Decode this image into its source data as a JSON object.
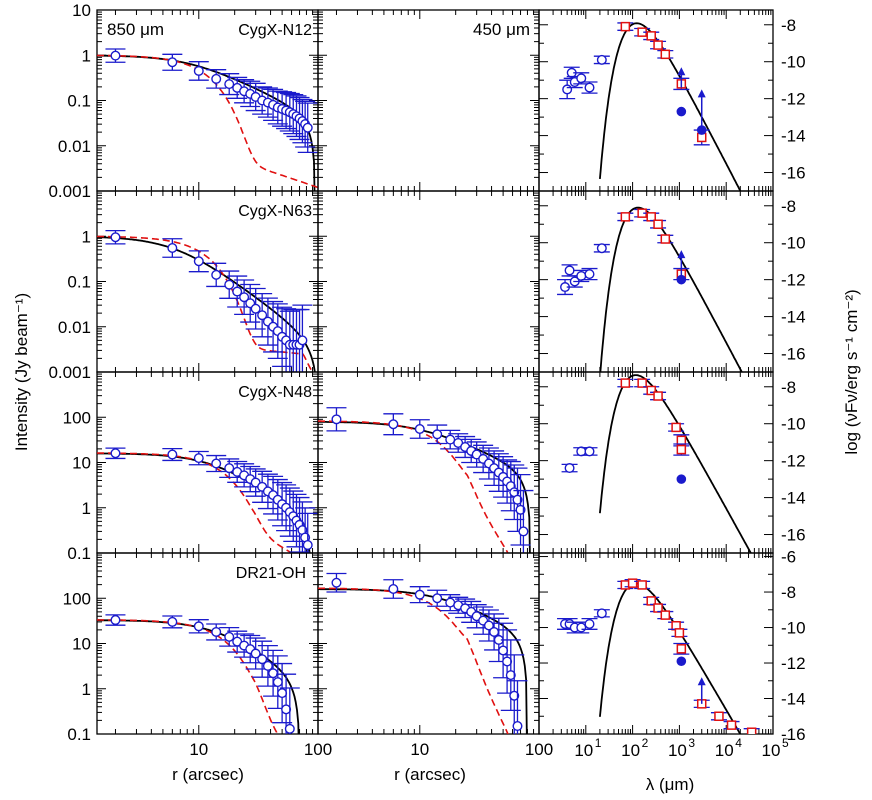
{
  "figure": {
    "ylabel_left": "Intensity (Jy beam⁻¹)",
    "ylabel_right": "log (νFν/erg s⁻¹ cm⁻²)",
    "xlabel_profile_left": "r (arcsec)",
    "xlabel_profile_mid": "r (arcsec)",
    "xlabel_sed": "λ (μm)",
    "label_850": "850 μm",
    "label_450": "450 μm"
  },
  "colors": {
    "model": "#000000",
    "data": "#1a1acc",
    "herschel": "#e01010",
    "dashed": "#e01010"
  },
  "chart_data": [
    {
      "type": "scatter",
      "source": "CygX-N12",
      "band": "850 um",
      "xscale": "log",
      "yscale": "log",
      "xlim": [
        1.4,
        100
      ],
      "ylim": [
        0.001,
        10
      ],
      "r": [
        2,
        6,
        10,
        14,
        18,
        21,
        24,
        27,
        30,
        34,
        38,
        42,
        46,
        50,
        54,
        58,
        62,
        66,
        70,
        74,
        78,
        82
      ],
      "intensity": [
        0.98,
        0.7,
        0.45,
        0.3,
        0.23,
        0.19,
        0.16,
        0.14,
        0.12,
        0.1,
        0.09,
        0.08,
        0.07,
        0.065,
        0.06,
        0.055,
        0.05,
        0.045,
        0.04,
        0.035,
        0.03,
        0.025
      ],
      "error_factor": [
        1.4,
        1.5,
        1.6,
        1.6,
        1.7,
        1.7,
        1.8,
        1.9,
        2,
        2,
        2.1,
        2.2,
        2.3,
        2.4,
        2.5,
        2.6,
        2.7,
        2.8,
        2.9,
        3,
        3.2,
        3.5
      ],
      "model_profile": {
        "peak": 1.0,
        "core": 8.5,
        "index": 1.3,
        "outer": 95
      },
      "beam_profile": {
        "peak": 1.0,
        "width": 9.5,
        "floor": 0.005,
        "floor_start": 20,
        "floor_end": 100,
        "floor_end_value": 0.0012
      }
    },
    {
      "type": "scatter",
      "source": "CygX-N12",
      "band": "450 um",
      "xscale": "log",
      "yscale": "log",
      "xlim": [
        1.4,
        100
      ],
      "ylim": [
        0.001,
        10
      ],
      "r": [],
      "intensity": [],
      "error_factor": []
    },
    {
      "type": "scatter",
      "source": "CygX-N12",
      "band": "SED",
      "xscale": "log",
      "xlim": [
        1,
        100000
      ],
      "ylim": [
        -17,
        -7.2
      ],
      "yticks": [
        -8,
        -10,
        -12,
        -14,
        -16
      ],
      "lambda": [
        4,
        5,
        5.8,
        8,
        12,
        22,
        70,
        160,
        250,
        350,
        500,
        1100,
        3000
      ],
      "logF": [
        -11.5,
        -10.6,
        -11.1,
        -10.9,
        -11.4,
        -9.9,
        -8.1,
        -8.4,
        -8.6,
        -9.1,
        -9.6,
        -11.2,
        -14.1
      ],
      "logF_err": [
        0.5,
        0.3,
        0.3,
        0.3,
        0.3,
        0.2,
        0.2,
        0.2,
        0.2,
        0.2,
        0.2,
        0.3,
        0.4
      ],
      "herschel_index": [
        6,
        7,
        8,
        9,
        10,
        11,
        12
      ],
      "solid": [
        {
          "lambda": 1100,
          "logF": -12.7
        },
        {
          "lambda": 3000,
          "logF": -13.7
        }
      ],
      "lower_limits": [
        {
          "lambda": 1100,
          "logF": -11.4,
          "arrow_to": -10.3
        },
        {
          "lambda": 3000,
          "logF": -13.6,
          "arrow_to": -11.5
        }
      ],
      "greybody": {
        "peak_lambda": 90,
        "peak_logF": -8.05,
        "start_lambda": 20,
        "t": 20,
        "beta": 1.9
      }
    },
    {
      "type": "scatter",
      "source": "CygX-N63",
      "band": "850 um",
      "xscale": "log",
      "yscale": "log",
      "xlim": [
        1.4,
        100
      ],
      "ylim": [
        0.001,
        10
      ],
      "r": [
        2,
        6,
        10,
        14,
        18,
        21,
        24,
        27,
        30,
        34,
        38,
        42,
        46,
        50,
        54,
        58,
        62,
        66,
        70,
        74
      ],
      "intensity": [
        0.95,
        0.55,
        0.28,
        0.14,
        0.085,
        0.06,
        0.045,
        0.033,
        0.025,
        0.018,
        0.013,
        0.01,
        0.008,
        0.006,
        0.005,
        0.004,
        0.004,
        0.004,
        0.004,
        0.005
      ],
      "error_factor": [
        1.4,
        1.6,
        1.7,
        1.8,
        2,
        2.2,
        2.4,
        2.6,
        2.8,
        3,
        3.3,
        3.6,
        4,
        4.5,
        5,
        5.5,
        6,
        6,
        6,
        6
      ],
      "model_profile": {
        "peak": 1.0,
        "core": 6.5,
        "index": 2.0,
        "outer": 100
      },
      "beam_profile": {
        "peak": 1.0,
        "width": 9.5,
        "floor": 0.0035,
        "floor_start": 20,
        "floor_end": 75,
        "floor_end_value": 0.0025
      }
    },
    {
      "type": "scatter",
      "source": "CygX-N63",
      "band": "450 um",
      "xscale": "log",
      "yscale": "log",
      "xlim": [
        1.4,
        100
      ],
      "ylim": [
        0.001,
        10
      ],
      "r": [],
      "intensity": [],
      "error_factor": []
    },
    {
      "type": "scatter",
      "source": "CygX-N63",
      "band": "SED",
      "xscale": "log",
      "xlim": [
        1,
        100000
      ],
      "ylim": [
        -17,
        -7.2
      ],
      "yticks": [
        -8,
        -10,
        -12,
        -14,
        -16
      ],
      "lambda": [
        3.6,
        4.5,
        5.8,
        8,
        12,
        22,
        70,
        160,
        250,
        350,
        500,
        1100
      ],
      "logF": [
        -12.4,
        -11.5,
        -12.1,
        -11.8,
        -11.7,
        -10.3,
        -8.6,
        -8.4,
        -8.6,
        -9.0,
        -9.8,
        -11.7
      ],
      "logF_err": [
        0.4,
        0.3,
        0.3,
        0.3,
        0.3,
        0.2,
        0.2,
        0.2,
        0.2,
        0.2,
        0.2,
        0.3
      ],
      "herschel_index": [
        6,
        7,
        8,
        9,
        10,
        11
      ],
      "solid": [
        {
          "lambda": 1100,
          "logF": -12.0
        }
      ],
      "lower_limits": [
        {
          "lambda": 1100,
          "logF": -11.8,
          "arrow_to": -10.4
        }
      ],
      "greybody": {
        "peak_lambda": 100,
        "peak_logF": -8.2,
        "start_lambda": 20,
        "t": 19,
        "beta": 1.8
      }
    },
    {
      "type": "scatter",
      "source": "CygX-N48",
      "band": "850 um",
      "xscale": "log",
      "yscale": "log",
      "xlim": [
        1.4,
        100
      ],
      "ylim": [
        0.1,
        1000
      ],
      "r": [
        2,
        6,
        10,
        14,
        18,
        21,
        24,
        27,
        30,
        34,
        38,
        42,
        46,
        50,
        54,
        58,
        62,
        66,
        70,
        74,
        78,
        82
      ],
      "intensity": [
        16,
        15,
        12.5,
        9.5,
        7.5,
        6.2,
        5.2,
        4.3,
        3.6,
        2.9,
        2.3,
        1.9,
        1.5,
        1.2,
        1.0,
        0.8,
        0.65,
        0.52,
        0.42,
        0.32,
        0.22,
        0.15
      ],
      "error_factor": [
        1.3,
        1.35,
        1.4,
        1.5,
        1.6,
        1.7,
        1.8,
        1.9,
        2,
        2.2,
        2.4,
        2.6,
        2.8,
        3,
        3.2,
        3.4,
        3.6,
        3.8,
        4,
        4.2,
        4.5,
        5
      ],
      "model_profile": {
        "peak": 16,
        "core": 14,
        "index": 1.9,
        "outer": 90
      },
      "beam_profile": {
        "peak": 16,
        "width": 13,
        "floor": 0.3,
        "floor_start": 30,
        "floor_end": 60,
        "floor_end_value": 0.1
      }
    },
    {
      "type": "scatter",
      "source": "CygX-N48",
      "band": "450 um",
      "xscale": "log",
      "yscale": "log",
      "xlim": [
        1.4,
        100
      ],
      "ylim": [
        0.1,
        1000
      ],
      "r": [
        2,
        6,
        10,
        14,
        18,
        21,
        24,
        27,
        30,
        34,
        38,
        42,
        46,
        50,
        54,
        58,
        62,
        66,
        70,
        74
      ],
      "intensity": [
        90,
        70,
        55,
        42,
        32,
        27,
        22,
        18,
        15,
        12,
        9.5,
        7.5,
        6.0,
        4.8,
        3.8,
        3.0,
        2.2,
        1.5,
        0.9,
        0.3
      ],
      "error_factor": [
        1.8,
        1.7,
        1.6,
        1.6,
        1.6,
        1.6,
        1.7,
        1.8,
        1.9,
        2,
        2.2,
        2.4,
        2.6,
        2.8,
        3,
        3.5,
        4,
        5,
        6,
        8
      ],
      "model_profile": {
        "peak": 80,
        "core": 10,
        "index": 1.2,
        "outer": 85
      },
      "beam_profile": {
        "peak": 80,
        "width": 11,
        "floor": 3,
        "floor_start": 25,
        "floor_end": 55,
        "floor_end_value": 0.1
      }
    },
    {
      "type": "scatter",
      "source": "CygX-N48",
      "band": "SED",
      "xscale": "log",
      "xlim": [
        1,
        100000
      ],
      "ylim": [
        -17,
        -7.2
      ],
      "yticks": [
        -8,
        -10,
        -12,
        -14,
        -16
      ],
      "lambda": [
        4.5,
        8,
        12,
        70,
        160,
        250,
        350,
        850,
        1100,
        1100
      ],
      "logF": [
        -12.4,
        -11.5,
        -11.5,
        -7.8,
        -7.8,
        -8.2,
        -8.5,
        -10.2,
        -10.9,
        -11.4
      ],
      "logF_err": [
        0.2,
        0.2,
        0.2,
        0.2,
        0.2,
        0.2,
        0.2,
        0.2,
        0.3,
        0.3
      ],
      "herschel_index": [
        3,
        4,
        5,
        6,
        7,
        8,
        9
      ],
      "solid": [
        {
          "lambda": 1100,
          "logF": -13.0
        }
      ],
      "lower_limits": [],
      "greybody": {
        "peak_lambda": 100,
        "peak_logF": -7.4,
        "start_lambda": 20,
        "t": 22,
        "beta": 1.6
      }
    },
    {
      "type": "scatter",
      "source": "DR21-OH",
      "band": "850 um",
      "xscale": "log",
      "yscale": "log",
      "xlim": [
        1.4,
        100
      ],
      "ylim": [
        0.1,
        1000
      ],
      "r": [
        2,
        6,
        10,
        14,
        18,
        21,
        24,
        27,
        30,
        34,
        38,
        42,
        46,
        50,
        54,
        58
      ],
      "intensity": [
        33,
        30,
        24,
        18,
        14,
        11,
        9,
        7.5,
        6,
        4.5,
        3.2,
        2.2,
        1.4,
        0.8,
        0.35,
        0.13
      ],
      "error_factor": [
        1.3,
        1.35,
        1.4,
        1.5,
        1.6,
        1.7,
        1.8,
        2,
        2.2,
        2.5,
        2.8,
        3.2,
        3.8,
        4.5,
        6,
        8
      ],
      "model_profile": {
        "peak": 33,
        "core": 14,
        "index": 1.8,
        "outer": 70
      },
      "beam_profile": {
        "peak": 33,
        "width": 13,
        "floor": 0.5,
        "floor_start": 30,
        "floor_end": 45,
        "floor_end_value": 0.1
      }
    },
    {
      "type": "scatter",
      "source": "DR21-OH",
      "band": "450 um",
      "xscale": "log",
      "yscale": "log",
      "xlim": [
        1.4,
        100
      ],
      "ylim": [
        0.1,
        1000
      ],
      "r": [
        2,
        6,
        10,
        14,
        18,
        21,
        24,
        27,
        30,
        34,
        38,
        42,
        46,
        50,
        54,
        58,
        62,
        66
      ],
      "intensity": [
        220,
        160,
        120,
        100,
        80,
        70,
        60,
        50,
        40,
        32,
        25,
        18,
        12,
        7,
        4,
        2,
        0.7,
        0.15
      ],
      "error_factor": [
        1.6,
        1.6,
        1.5,
        1.5,
        1.5,
        1.5,
        1.6,
        1.7,
        1.8,
        2,
        2.2,
        2.5,
        3,
        4,
        5,
        6,
        8,
        10
      ],
      "model_profile": {
        "peak": 160,
        "core": 14,
        "index": 1.3,
        "outer": 80
      },
      "beam_profile": {
        "peak": 160,
        "width": 11,
        "floor": 8,
        "floor_start": 25,
        "floor_end": 55,
        "floor_end_value": 0.1
      }
    },
    {
      "type": "scatter",
      "source": "DR21-OH",
      "band": "SED",
      "xscale": "log",
      "xlim": [
        1,
        100000
      ],
      "ylim": [
        -16,
        -5.8
      ],
      "yticks": [
        -6,
        -8,
        -10,
        -12,
        -14,
        -16
      ],
      "lambda": [
        3.6,
        4.5,
        5.8,
        8,
        12,
        22,
        70,
        100,
        160,
        250,
        350,
        500,
        850,
        1000,
        1100,
        3000,
        7000,
        13000,
        35000
      ],
      "logF": [
        -9.8,
        -9.8,
        -10.0,
        -10.0,
        -9.8,
        -9.2,
        -7.6,
        -7.5,
        -7.6,
        -8.5,
        -8.9,
        -9.3,
        -9.9,
        -10.3,
        -11.2,
        -14.3,
        -15.0,
        -15.5,
        -15.9
      ],
      "logF_err": [
        0.3,
        0.3,
        0.3,
        0.3,
        0.3,
        0.2,
        0.2,
        0.2,
        0.2,
        0.2,
        0.2,
        0.2,
        0.2,
        0.2,
        0.3,
        0.2,
        0.2,
        0.2,
        0.2
      ],
      "herschel_index": [
        6,
        7,
        8,
        9,
        10,
        11,
        12,
        13,
        14,
        15,
        16,
        17,
        18
      ],
      "solid": [
        {
          "lambda": 1100,
          "logF": -11.9
        }
      ],
      "lower_limits": [
        {
          "lambda": 3000,
          "logF": -14.3,
          "arrow_to": -12.8
        }
      ],
      "greybody": {
        "peak_lambda": 100,
        "peak_logF": -7.55,
        "start_lambda": 20,
        "t": 22,
        "beta": 1.55
      }
    }
  ],
  "panel_labels": [
    "CygX-N12",
    "CygX-N63",
    "CygX-N48",
    "DR21-OH"
  ]
}
